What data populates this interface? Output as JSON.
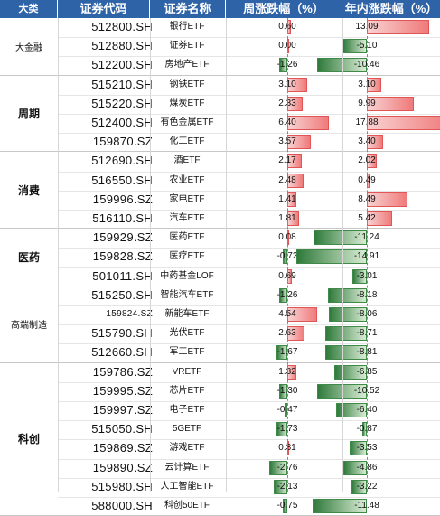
{
  "headers": {
    "category": "大类",
    "code": "证券代码",
    "name": "证券名称",
    "week_change": "周涨跌幅（%）",
    "ytd_change": "年内涨跌幅（%）"
  },
  "colors": {
    "header_bg": "#2e63a8",
    "positive": "#f07a7a",
    "negative": "#2f7a3b"
  },
  "groups": [
    {
      "label": "大金融",
      "rows": [
        {
          "code": "512800.SH",
          "name": "银行ETF",
          "week": 0.6,
          "week_text": "0.60",
          "ytd": 13.09,
          "ytd_text": "13.09"
        },
        {
          "code": "512880.SH",
          "name": "证券ETF",
          "week": 0.0,
          "week_text": "0.00",
          "ytd": -5.1,
          "ytd_text": "-5.10"
        },
        {
          "code": "512200.SH",
          "name": "房地产ETF",
          "week": -1.26,
          "week_text": "-1.26",
          "ytd": -10.46,
          "ytd_text": "-10.46"
        }
      ]
    },
    {
      "label": "周期",
      "rows": [
        {
          "code": "515210.SH",
          "name": "钢铁ETF",
          "week": 3.1,
          "week_text": "3.10",
          "ytd": 3.1,
          "ytd_text": "3.10"
        },
        {
          "code": "515220.SH",
          "name": "煤炭ETF",
          "week": 2.33,
          "week_text": "2.33",
          "ytd": 9.99,
          "ytd_text": "9.99"
        },
        {
          "code": "512400.SH",
          "name": "有色金属ETF",
          "week": 6.4,
          "week_text": "6.40",
          "ytd": 17.88,
          "ytd_text": "17.88"
        },
        {
          "code": "159870.SZ",
          "name": "化工ETF",
          "week": 3.57,
          "week_text": "3.57",
          "ytd": 3.4,
          "ytd_text": "3.40"
        }
      ]
    },
    {
      "label": "消费",
      "rows": [
        {
          "code": "512690.SH",
          "name": "酒ETF",
          "week": 2.17,
          "week_text": "2.17",
          "ytd": 2.02,
          "ytd_text": "2.02"
        },
        {
          "code": "516550.SH",
          "name": "农业ETF",
          "week": 2.48,
          "week_text": "2.48",
          "ytd": 0.49,
          "ytd_text": "0.49"
        },
        {
          "code": "159996.SZ",
          "name": "家电ETF",
          "week": 1.41,
          "week_text": "1.41",
          "ytd": 8.49,
          "ytd_text": "8.49"
        },
        {
          "code": "516110.SH",
          "name": "汽车ETF",
          "week": 1.81,
          "week_text": "1.81",
          "ytd": 5.42,
          "ytd_text": "5.42"
        }
      ]
    },
    {
      "label": "医药",
      "rows": [
        {
          "code": "159929.SZ",
          "name": "医药ETF",
          "week": 0.08,
          "week_text": "0.08",
          "ytd": -11.24,
          "ytd_text": "-11.24"
        },
        {
          "code": "159828.SZ",
          "name": "医疗ETF",
          "week": -0.72,
          "week_text": "-0.72",
          "ytd": -14.91,
          "ytd_text": "-14.91"
        },
        {
          "code": "501011.SH",
          "name": "中药基金LOF",
          "week": 0.69,
          "week_text": "0.69",
          "ytd": -3.01,
          "ytd_text": "-3.01"
        }
      ]
    },
    {
      "label": "高端制造",
      "rows": [
        {
          "code": "515250.SH",
          "name": "智能汽车ETF",
          "week": -1.26,
          "week_text": "-1.26",
          "ytd": -8.18,
          "ytd_text": "-8.18"
        },
        {
          "code": "159824.SZ",
          "name": "新能车ETF",
          "week": 4.54,
          "week_text": "4.54",
          "ytd": -8.06,
          "ytd_text": "-8.06",
          "small_code": true
        },
        {
          "code": "515790.SH",
          "name": "光伏ETF",
          "week": 2.63,
          "week_text": "2.63",
          "ytd": -8.71,
          "ytd_text": "-8.71"
        },
        {
          "code": "512660.SH",
          "name": "军工ETF",
          "week": -1.67,
          "week_text": "-1.67",
          "ytd": -8.81,
          "ytd_text": "-8.81"
        }
      ]
    },
    {
      "label": "科创",
      "rows": [
        {
          "code": "159786.SZ",
          "name": "VRETF",
          "week": 1.32,
          "week_text": "1.32",
          "ytd": -6.85,
          "ytd_text": "-6.85"
        },
        {
          "code": "159995.SZ",
          "name": "芯片ETF",
          "week": -1.3,
          "week_text": "-1.30",
          "ytd": -10.52,
          "ytd_text": "-10.52"
        },
        {
          "code": "159997.SZ",
          "name": "电子ETF",
          "week": -0.47,
          "week_text": "-0.47",
          "ytd": -6.4,
          "ytd_text": "-6.40"
        },
        {
          "code": "515050.SH",
          "name": "5GETF",
          "week": -1.73,
          "week_text": "-1.73",
          "ytd": -0.87,
          "ytd_text": "-0.87"
        },
        {
          "code": "159869.SZ",
          "name": "游戏ETF",
          "week": 0.31,
          "week_text": "0.31",
          "ytd": -3.53,
          "ytd_text": "-3.53"
        },
        {
          "code": "159890.SZ",
          "name": "云计算ETF",
          "week": -2.76,
          "week_text": "-2.76",
          "ytd": -4.86,
          "ytd_text": "-4.86"
        },
        {
          "code": "515980.SH",
          "name": "人工智能ETF",
          "week": -2.13,
          "week_text": "-2.13",
          "ytd": -3.22,
          "ytd_text": "-3.22"
        },
        {
          "code": "588000.SH",
          "name": "科创50ETF",
          "week": -0.75,
          "week_text": "-0.75",
          "ytd": -11.48,
          "ytd_text": "-11.48"
        }
      ]
    }
  ]
}
